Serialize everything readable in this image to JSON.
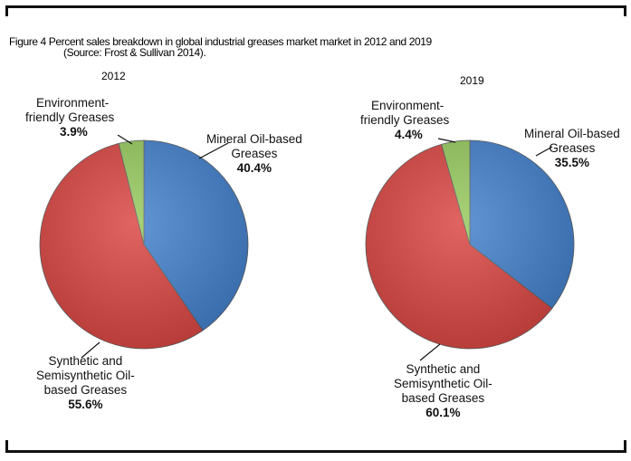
{
  "title": "Figure 4 Percent sales breakdown in global industrial greases market market in 2012 and 2019",
  "source": "(Source: Frost & Sullivan 2014).",
  "colors": {
    "mineral": "#3f7ecb",
    "synthetic": "#d9433f",
    "environment": "#95c95b"
  },
  "chart_data": [
    {
      "type": "pie",
      "title": "2012",
      "labels": [
        "Mineral Oil-based Greases",
        "Synthetic and Semisynthetic Oil-based Greases",
        "Environment-friendly Greases"
      ],
      "values": [
        40.4,
        55.6,
        3.9
      ],
      "value_labels": [
        "40.4%",
        "55.6%",
        "3.9%"
      ],
      "label_lines": [
        [
          "Mineral Oil-based",
          "Greases"
        ],
        [
          "Synthetic and",
          "Semisynthetic Oil-",
          "based Greases"
        ],
        [
          "Environment-",
          "friendly Greases"
        ]
      ]
    },
    {
      "type": "pie",
      "title": "2019",
      "labels": [
        "Mineral Oil-based Greases",
        "Synthetic and Semisynthetic Oil-based Greases",
        "Environment-friendly Greases"
      ],
      "values": [
        35.5,
        60.1,
        4.4
      ],
      "value_labels": [
        "35.5%",
        "60.1%",
        "4.4%"
      ],
      "label_lines": [
        [
          "Mineral Oil-based",
          "Greases"
        ],
        [
          "Synthetic and",
          "Semisynthetic Oil-",
          "based Greases"
        ],
        [
          "Environment-",
          "friendly Greases"
        ]
      ]
    }
  ]
}
